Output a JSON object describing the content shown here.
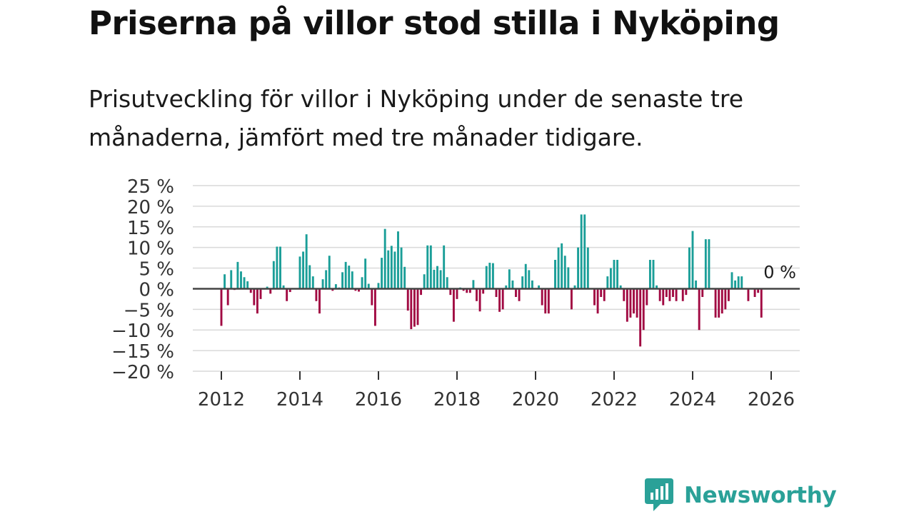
{
  "header": {
    "title": "Priserna på villor stod stilla i Nyköping",
    "subtitle": "Prisutveckling för villor i Nyköping under de senaste tre månaderna, jämfört med tre månader tidigare."
  },
  "colors": {
    "positive": "#1a9e98",
    "negative": "#a10942",
    "grid": "#d9d9d9",
    "zero_line": "#444444",
    "axis_text": "#333333",
    "brand": "#2aa198"
  },
  "brand": {
    "name": "Newsworthy",
    "icon": "newsworthy-logo-icon"
  },
  "chart_data": {
    "type": "bar",
    "title": "Priserna på villor stod stilla i Nyköping",
    "subtitle": "Prisutveckling för villor i Nyköping under de senaste tre månaderna, jämfört med tre månader tidigare.",
    "xlabel": "",
    "ylabel": "",
    "x_unit": "year",
    "xlim": [
      2011.5,
      2026.7
    ],
    "ylim": [
      -20,
      25
    ],
    "y_ticks": [
      25,
      20,
      15,
      10,
      5,
      0,
      -5,
      -10,
      -15,
      -20
    ],
    "y_tick_labels": [
      "25 %",
      "20 %",
      "15 %",
      "10 %",
      "5 %",
      "0 %",
      "−5 %",
      "−10 %",
      "−15 %",
      "−20 %"
    ],
    "x_ticks": [
      2012,
      2014,
      2016,
      2018,
      2020,
      2022,
      2024,
      2026
    ],
    "x_tick_labels": [
      "2012",
      "2014",
      "2016",
      "2018",
      "2020",
      "2022",
      "2024",
      "2026"
    ],
    "grid": true,
    "annotation": {
      "label": "0 %",
      "x": 2025.75,
      "y": 0
    },
    "start": [
      2012,
      1
    ],
    "values": [
      -9,
      3.5,
      -4,
      4.5,
      -0.3,
      6.5,
      4.2,
      2.8,
      1.8,
      -1,
      -4,
      -6,
      -2.5,
      -0.2,
      0.5,
      -1.2,
      6.7,
      10.2,
      10.2,
      0.8,
      -3,
      -0.8,
      0,
      0,
      7.8,
      9,
      13.2,
      5.7,
      3,
      -3,
      -6,
      2.3,
      4.5,
      8,
      -0.5,
      1.1,
      0.3,
      4,
      6.5,
      5.6,
      4.2,
      -0.5,
      -0.7,
      2.8,
      7.3,
      1.2,
      -4,
      -9,
      1.4,
      7.5,
      14.5,
      9.3,
      10.4,
      9,
      13.9,
      10,
      5.3,
      -5.3,
      -9.8,
      -9.2,
      -8.8,
      -1.5,
      3.5,
      10.5,
      10.5,
      4.6,
      5.5,
      4.5,
      10.5,
      2.8,
      -1.5,
      -8,
      -2.5,
      0.3,
      -0.5,
      -1,
      -1,
      2.1,
      -3,
      -5.5,
      -1.2,
      5.5,
      6.3,
      6.2,
      -2,
      -5.6,
      -5,
      0.8,
      4.7,
      2,
      -2,
      -3,
      3,
      6,
      4.5,
      2,
      0,
      0.8,
      -4,
      -6,
      -6,
      0,
      7,
      10,
      11,
      8,
      5.2,
      -5,
      0.8,
      10,
      18,
      18,
      10,
      0,
      -4,
      -6,
      -2,
      -3,
      3,
      5,
      7,
      7,
      0.8,
      -3,
      -8,
      -7,
      -6,
      -7,
      -14,
      -10,
      -4,
      7,
      7,
      0.8,
      -3,
      -4,
      -2,
      -3,
      -2,
      -3,
      0,
      -3,
      -1.5,
      10,
      14,
      2,
      -10,
      -2,
      12,
      12,
      0,
      -7,
      -7,
      -6,
      -5,
      -3,
      4,
      2,
      3,
      3,
      0,
      -3,
      0,
      -2,
      -1,
      -7
    ]
  }
}
